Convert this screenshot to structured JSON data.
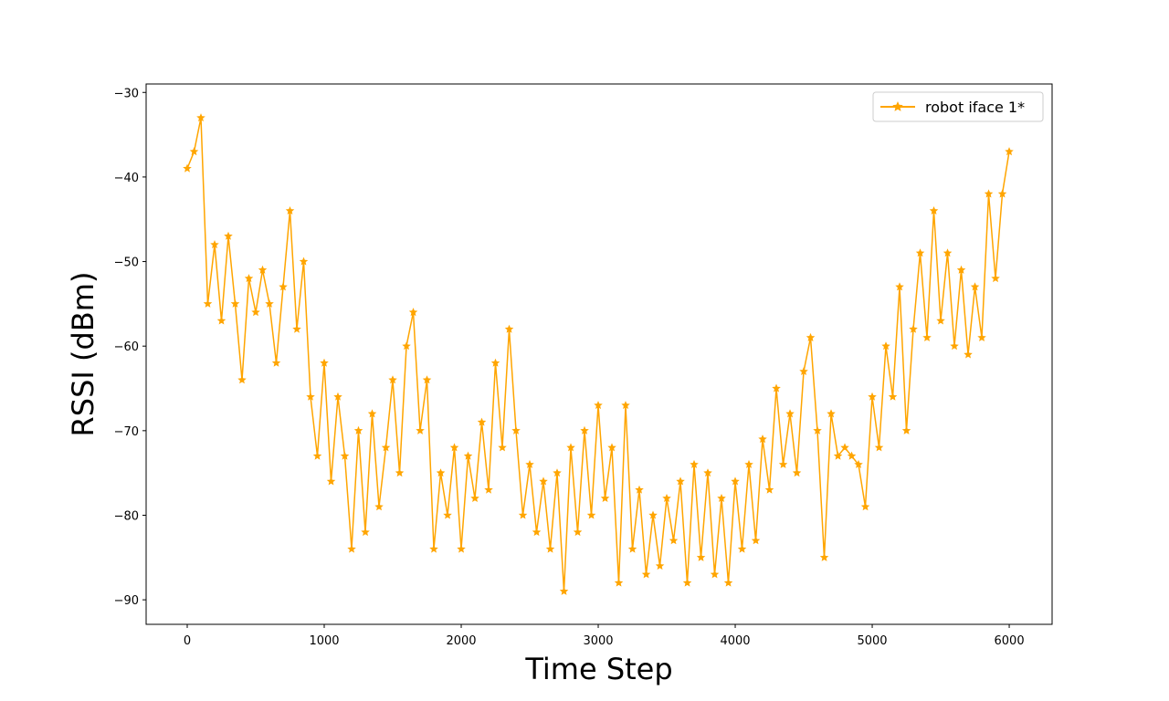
{
  "chart_data": {
    "type": "line",
    "xlabel": "Time Step",
    "ylabel": "RSSI (dBm)",
    "x": [
      0,
      50,
      100,
      150,
      200,
      250,
      300,
      350,
      400,
      450,
      500,
      550,
      600,
      650,
      700,
      750,
      800,
      850,
      900,
      950,
      1000,
      1050,
      1100,
      1150,
      1200,
      1250,
      1300,
      1350,
      1400,
      1450,
      1500,
      1550,
      1600,
      1650,
      1700,
      1750,
      1800,
      1850,
      1900,
      1950,
      2000,
      2050,
      2100,
      2150,
      2200,
      2250,
      2300,
      2350,
      2400,
      2450,
      2500,
      2550,
      2600,
      2650,
      2700,
      2750,
      2800,
      2850,
      2900,
      2950,
      3000,
      3050,
      3100,
      3150,
      3200,
      3250,
      3300,
      3350,
      3400,
      3450,
      3500,
      3550,
      3600,
      3650,
      3700,
      3750,
      3800,
      3850,
      3900,
      3950,
      4000,
      4050,
      4100,
      4150,
      4200,
      4250,
      4300,
      4350,
      4400,
      4450,
      4500,
      4550,
      4600,
      4650,
      4700,
      4750,
      4800,
      4850,
      4900,
      4950,
      5000,
      5050,
      5100,
      5150,
      5200,
      5250,
      5300,
      5350,
      5400,
      5450,
      5500,
      5550,
      5600,
      5650,
      5700,
      5750,
      5800,
      5850,
      5900,
      5950,
      6000
    ],
    "series": [
      {
        "name": "robot iface 1*",
        "color": "#ffa500",
        "marker": "star",
        "values": [
          -39,
          -37,
          -33,
          -55,
          -48,
          -57,
          -47,
          -55,
          -64,
          -52,
          -56,
          -51,
          -55,
          -62,
          -53,
          -44,
          -58,
          -50,
          -66,
          -73,
          -62,
          -76,
          -66,
          -73,
          -84,
          -70,
          -82,
          -68,
          -79,
          -72,
          -64,
          -75,
          -60,
          -56,
          -70,
          -64,
          -84,
          -75,
          -80,
          -72,
          -84,
          -73,
          -78,
          -69,
          -77,
          -62,
          -72,
          -58,
          -70,
          -80,
          -74,
          -82,
          -76,
          -84,
          -75,
          -89,
          -72,
          -82,
          -70,
          -80,
          -67,
          -78,
          -72,
          -88,
          -67,
          -84,
          -77,
          -87,
          -80,
          -86,
          -78,
          -83,
          -76,
          -88,
          -74,
          -85,
          -75,
          -87,
          -78,
          -88,
          -76,
          -84,
          -74,
          -83,
          -71,
          -77,
          -65,
          -74,
          -68,
          -75,
          -63,
          -59,
          -70,
          -85,
          -68,
          -73,
          -72,
          -73,
          -74,
          -79,
          -66,
          -72,
          -60,
          -66,
          -53,
          -70,
          -58,
          -49,
          -59,
          -44,
          -57,
          -49,
          -60,
          -51,
          -61,
          -53,
          -59,
          -42,
          -52,
          -42,
          -37
        ]
      }
    ],
    "xlim": [
      -300,
      6313
    ],
    "ylim": [
      -92.9,
      -29.0
    ],
    "xticks": [
      0,
      1000,
      2000,
      3000,
      4000,
      5000,
      6000
    ],
    "yticks": [
      {
        "value": -30,
        "label": "−30"
      },
      {
        "value": -40,
        "label": "−40"
      },
      {
        "value": -50,
        "label": "−50"
      },
      {
        "value": -60,
        "label": "−60"
      },
      {
        "value": -70,
        "label": "−70"
      },
      {
        "value": -80,
        "label": "−80"
      },
      {
        "value": -90,
        "label": "−90"
      }
    ],
    "legend": "upper right"
  }
}
